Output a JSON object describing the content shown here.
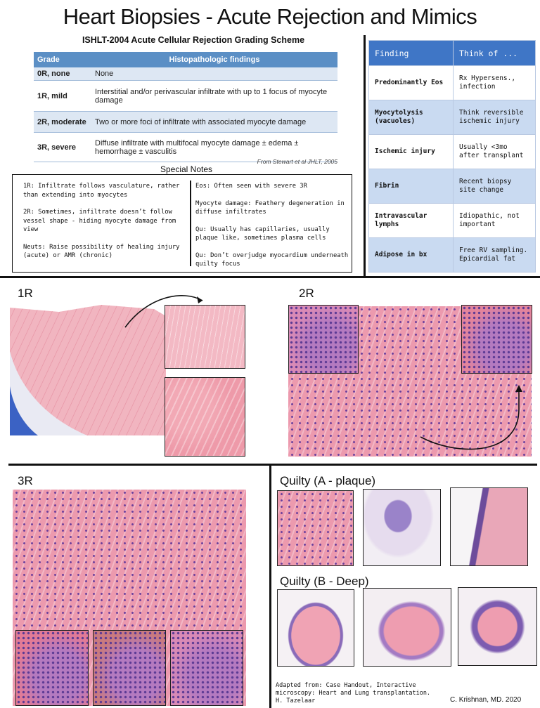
{
  "title": "Heart Biopsies - Acute Rejection and Mimics",
  "grading": {
    "heading": "ISHLT-2004 Acute Cellular Rejection Grading Scheme",
    "col_grade": "Grade",
    "col_findings": "Histopathologic findings",
    "rows": [
      {
        "grade": "0R, none",
        "finding": "None"
      },
      {
        "grade": "1R, mild",
        "finding": "Interstitial and/or perivascular infiltrate with up to 1 focus of myocyte damage"
      },
      {
        "grade": "2R, moderate",
        "finding": "Two or more foci of infiltrate with associated myocyte damage"
      },
      {
        "grade": "3R, severe",
        "finding": "Diffuse infiltrate with multifocal myocyte damage ± edema ± hemorrhage ± vasculitis"
      }
    ],
    "source": "From Stewart et al JHLT, 2005"
  },
  "special_notes": {
    "title": "Special Notes",
    "left": [
      "1R: Infiltrate follows vasculature, rather than extending into myocytes",
      "2R: Sometimes, infiltrate doesn’t follow vessel shape - hiding myocyte damage from view",
      "Neuts: Raise possibility of healing injury (acute) or AMR (chronic)"
    ],
    "right": [
      "Eos: Often seen with severe 3R",
      "Myocyte damage: Feathery degeneration in diffuse infiltrates",
      "Qu: Usually has capillaries, usually plaque like, sometimes plasma cells",
      "Qu: Don’t overjudge myocardium underneath quilty focus"
    ]
  },
  "findings_table": {
    "col_finding": "Finding",
    "col_think": "Think of ...",
    "rows": [
      {
        "finding": "Predominantly Eos",
        "think": "Rx Hypersens., infection"
      },
      {
        "finding": "Myocytolysis (vacuoles)",
        "think": "Think reversible ischemic injury"
      },
      {
        "finding": "Ischemic injury",
        "think": "Usually <3mo after transplant"
      },
      {
        "finding": "Fibrin",
        "think": "Recent biopsy site change"
      },
      {
        "finding": "Intravascular lymphs",
        "think": "Idiopathic, not important"
      },
      {
        "finding": "Adipose in bx",
        "think": "Free RV sampling. Epicardial fat"
      }
    ]
  },
  "sections": {
    "r1": "1R",
    "r2": "2R",
    "r3": "3R",
    "quilty_a": "Quilty (A - plaque)",
    "quilty_b": "Quilty (B - Deep)"
  },
  "credit": {
    "line1": "Adapted from: Case Handout, Interactive",
    "line2": "microscopy: Heart and Lung transplantation.",
    "line3": "H. Tazelaar",
    "author": "C. Krishnan, MD.  2020"
  }
}
